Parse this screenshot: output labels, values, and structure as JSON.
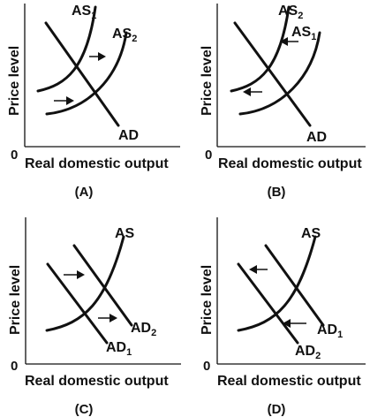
{
  "colors": {
    "ink": "#111111",
    "background": "#ffffff"
  },
  "axes": {
    "y_label": "Price level",
    "x_label": "Real domestic output",
    "origin": "0"
  },
  "panels": [
    {
      "id": "A",
      "caption": "(A)",
      "curves": [
        {
          "name": "AS",
          "sub": "1",
          "type": "supply"
        },
        {
          "name": "AS",
          "sub": "2",
          "type": "supply"
        },
        {
          "name": "AD",
          "sub": "",
          "type": "demand"
        }
      ],
      "shift_arrows": "right"
    },
    {
      "id": "B",
      "caption": "(B)",
      "curves": [
        {
          "name": "AS",
          "sub": "2",
          "type": "supply"
        },
        {
          "name": "AS",
          "sub": "1",
          "type": "supply"
        },
        {
          "name": "AD",
          "sub": "",
          "type": "demand"
        }
      ],
      "shift_arrows": "left"
    },
    {
      "id": "C",
      "caption": "(C)",
      "curves": [
        {
          "name": "AS",
          "sub": "",
          "type": "supply"
        },
        {
          "name": "AD",
          "sub": "1",
          "type": "demand"
        },
        {
          "name": "AD",
          "sub": "2",
          "type": "demand"
        }
      ],
      "shift_arrows": "right"
    },
    {
      "id": "D",
      "caption": "(D)",
      "curves": [
        {
          "name": "AS",
          "sub": "",
          "type": "supply"
        },
        {
          "name": "AD",
          "sub": "1",
          "type": "demand"
        },
        {
          "name": "AD",
          "sub": "2",
          "type": "demand"
        }
      ],
      "shift_arrows": "left"
    }
  ]
}
